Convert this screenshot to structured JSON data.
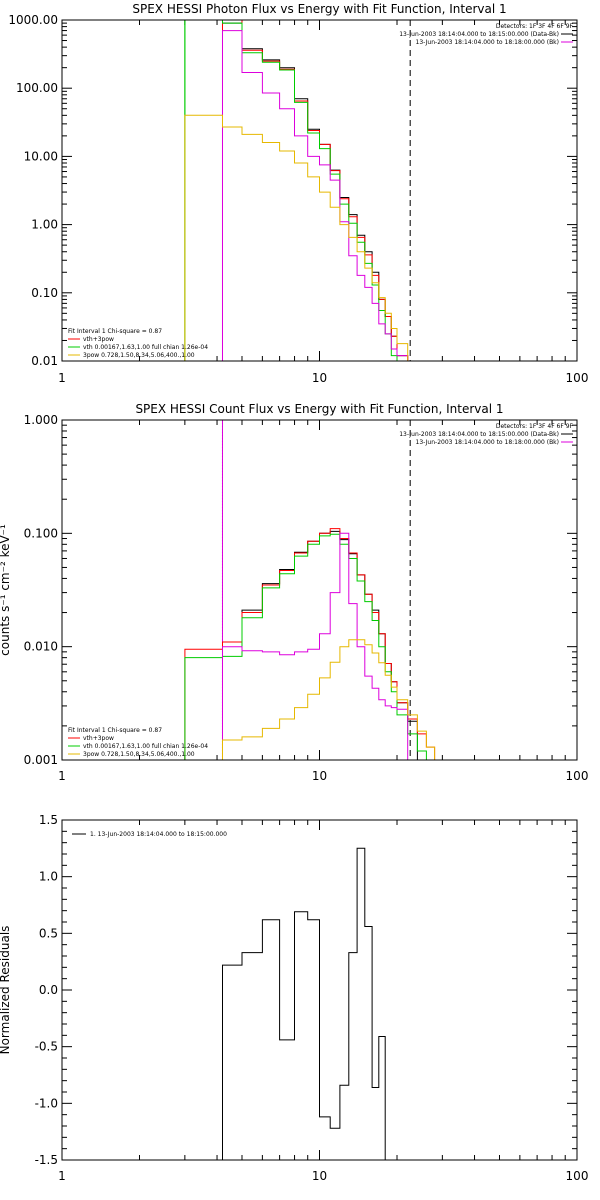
{
  "chart_data": [
    {
      "type": "line",
      "title": "SPEX HESSI Photon Flux vs Energy with Fit Function, Interval 1",
      "xlabel": "",
      "ylabel": "",
      "xscale": "log",
      "yscale": "log",
      "xlim": [
        1,
        100
      ],
      "ylim": [
        0.01,
        1000
      ],
      "x_tick_labels": [
        "1",
        "10",
        "100"
      ],
      "y_tick_labels": [
        "0.01",
        "0.10",
        "1.00",
        "10.00",
        "100.00",
        "1000.00"
      ],
      "header": {
        "detectors": "Detectors: 1F 3F 4F 6F 9F",
        "line1": "13-Jun-2003 18:14:04.000 to 18:15:00.000 (Data-Bk)",
        "line2": "13-Jun-2003 18:14:04.000 to 18:18:00.000 (Bk)",
        "line1_color": "#000000",
        "line2_color": "#dd00dd"
      },
      "fit_legend": {
        "title": "Fit Interval 1    Chi-square = 0.87",
        "items": [
          {
            "label": "vth+3pow",
            "color": "#ff0000"
          },
          {
            "label": "vth 0.00167,1.63,1.00  full chian 1.26e-04",
            "color": "#00cc00"
          },
          {
            "label": "3pow 0.728,1.50,8.34,5.06,400.,1.00",
            "color": "#e6b800"
          }
        ]
      },
      "vlines": [
        {
          "x": 3.0,
          "style": "solid",
          "color": "#00cc00"
        },
        {
          "x": 4.2,
          "style": "solid",
          "color": "#dd00dd"
        },
        {
          "x": 22.5,
          "style": "dashed",
          "color": "#000000"
        }
      ],
      "bin_edges": [
        3,
        4.2,
        5,
        6,
        7,
        8,
        9,
        10,
        11,
        12,
        13,
        14,
        15,
        16,
        17,
        18,
        19,
        20,
        22,
        24,
        26,
        28
      ],
      "series": [
        {
          "color": "#000000",
          "values": [
            null,
            900,
            380,
            260,
            200,
            70,
            25,
            15,
            6.3,
            2.5,
            1.4,
            0.7,
            0.4,
            0.2,
            0.08,
            0.045,
            0.023,
            0.012
          ]
        },
        {
          "color": "#ff0000",
          "values": [
            null,
            1000,
            360,
            250,
            190,
            65,
            24,
            15,
            6.2,
            2.4,
            1.3,
            0.65,
            0.36,
            0.18,
            0.08,
            0.045,
            0.023,
            0.012
          ]
        },
        {
          "color": "#00cc00",
          "values": [
            1000,
            900,
            330,
            240,
            185,
            62,
            22,
            13,
            5.5,
            2.0,
            1.05,
            0.55,
            0.27,
            0.13,
            0.055,
            0.025,
            0.012,
            null
          ]
        },
        {
          "color": "#dd00dd",
          "values": [
            null,
            700,
            170,
            85,
            50,
            20,
            10,
            7.5,
            4.5,
            1.1,
            0.35,
            0.18,
            0.12,
            0.07,
            0.035,
            0.025,
            0.015,
            0.012
          ]
        },
        {
          "color": "#e6b800",
          "values": [
            40,
            27,
            21,
            16,
            12,
            8.0,
            5.0,
            3.0,
            1.8,
            1.0,
            0.65,
            0.4,
            0.23,
            0.14,
            0.085,
            0.05,
            0.03,
            0.018
          ]
        }
      ]
    },
    {
      "type": "line",
      "title": "SPEX HESSI Count Flux vs Energy with Fit Function, Interval 1",
      "xlabel": "",
      "ylabel": "counts s⁻¹ cm⁻² keV⁻¹",
      "xscale": "log",
      "yscale": "log",
      "xlim": [
        1,
        100
      ],
      "ylim": [
        0.001,
        1
      ],
      "x_tick_labels": [
        "1",
        "10",
        "100"
      ],
      "y_tick_labels": [
        "0.001",
        "0.010",
        "0.100",
        "1.000"
      ],
      "header": {
        "detectors": "Detectors: 1F 3F 4F 6F 9F",
        "line1": "13-Jun-2003 18:14:04.000 to 18:15:00.000 (Data-Bk)",
        "line2": "13-Jun-2003 18:14:04.000 to 18:18:00.000 (Bk)",
        "line1_color": "#000000",
        "line2_color": "#dd00dd"
      },
      "fit_legend": {
        "title": "Fit Interval 1    Chi-square = 0.87",
        "items": [
          {
            "label": "vth+3pow",
            "color": "#ff0000"
          },
          {
            "label": "vth 0.00167,1.63,1.00  full chian 1.26e-04",
            "color": "#00cc00"
          },
          {
            "label": "3pow 0.728,1.50,8.34,5.06,400.,1.00",
            "color": "#e6b800"
          }
        ]
      },
      "vlines": [
        {
          "x": 4.2,
          "style": "dotted",
          "color": "#000000"
        },
        {
          "x": 4.2,
          "style": "solid",
          "color": "#dd00dd"
        },
        {
          "x": 22.5,
          "style": "dashed",
          "color": "#000000"
        }
      ],
      "bin_edges": [
        3,
        4.2,
        5,
        6,
        7,
        8,
        9,
        10,
        11,
        12,
        13,
        14,
        15,
        16,
        17,
        18,
        19,
        20,
        22,
        24,
        26,
        28
      ],
      "series": [
        {
          "color": "#000000",
          "values": [
            null,
            0.011,
            0.021,
            0.036,
            0.048,
            0.068,
            0.085,
            0.1,
            0.104,
            0.088,
            0.066,
            0.043,
            0.029,
            0.021,
            0.013,
            0.0071,
            0.0049,
            0.0032,
            0.0022,
            null,
            null
          ]
        },
        {
          "color": "#ff0000",
          "values": [
            0.0095,
            0.011,
            0.02,
            0.035,
            0.047,
            0.067,
            0.085,
            0.1,
            0.11,
            0.09,
            0.067,
            0.043,
            0.029,
            0.02,
            0.013,
            0.0071,
            0.0049,
            0.0032,
            0.0023,
            0.0017,
            0.0013
          ]
        },
        {
          "color": "#00cc00",
          "values": [
            0.008,
            0.0082,
            0.018,
            0.033,
            0.044,
            0.063,
            0.08,
            0.095,
            0.098,
            0.08,
            0.06,
            0.038,
            0.025,
            0.017,
            0.01,
            0.006,
            0.004,
            0.0025,
            0.0017,
            0.0012,
            0.001
          ]
        },
        {
          "color": "#dd00dd",
          "values": [
            null,
            0.01,
            0.0092,
            0.009,
            0.0085,
            0.009,
            0.0095,
            0.013,
            0.03,
            0.1,
            0.024,
            0.01,
            0.0055,
            0.0043,
            0.0034,
            0.003,
            0.0029,
            0.0028,
            null,
            null,
            null
          ]
        },
        {
          "color": "#e6b800",
          "values": [
            null,
            0.0015,
            0.0016,
            0.0019,
            0.0023,
            0.0029,
            0.0038,
            0.0053,
            0.0073,
            0.01,
            0.0115,
            0.0115,
            0.0104,
            0.0088,
            0.0072,
            0.0056,
            0.0044,
            0.0034,
            0.0025,
            0.0018,
            0.0013
          ]
        }
      ]
    },
    {
      "type": "line",
      "title": "",
      "xlabel": "",
      "ylabel": "Normalized Residuals",
      "xscale": "log",
      "yscale": "linear",
      "xlim": [
        1,
        100
      ],
      "ylim": [
        -1.5,
        1.5
      ],
      "x_tick_labels": [
        "1",
        "10",
        "100"
      ],
      "y_tick_labels": [
        "-1.5",
        "-1.0",
        "-0.5",
        "0.0",
        "0.5",
        "1.0",
        "1.5"
      ],
      "legend": {
        "label": "1. 13-Jun-2003 18:14:04.000 to 18:15:00.000",
        "color": "#000000"
      },
      "bin_edges": [
        4.2,
        5,
        6,
        7,
        8,
        9,
        10,
        11,
        12,
        13,
        14,
        15,
        16,
        17,
        18,
        19,
        20,
        22
      ],
      "series": [
        {
          "color": "#000000",
          "values": [
            0.22,
            0.33,
            0.62,
            -0.44,
            0.69,
            0.62,
            -1.12,
            -1.22,
            -0.84,
            0.33,
            1.25,
            0.56,
            -0.86,
            -0.41,
            null,
            null,
            null
          ]
        }
      ]
    }
  ]
}
